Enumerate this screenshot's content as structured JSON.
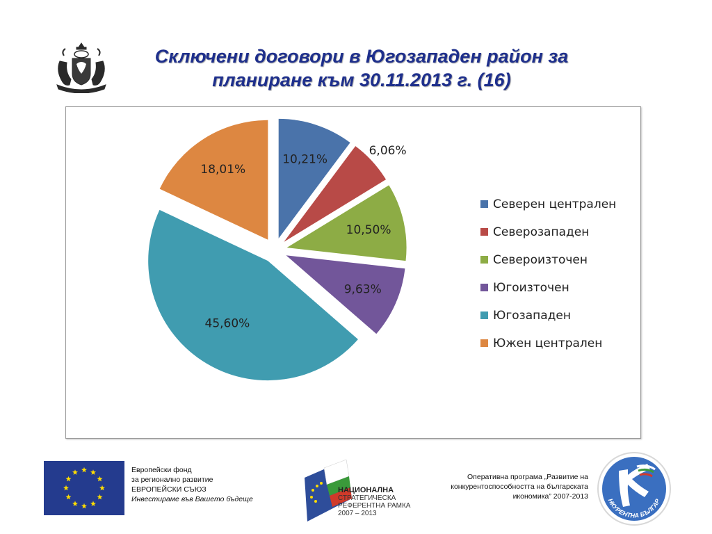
{
  "header": {
    "title_line1": "Сключени договори в Югозападен район за",
    "title_line2": "планиране към 30.11.2013 г. (16)"
  },
  "chart_data": {
    "type": "pie",
    "exploded": true,
    "legend_position": "right",
    "categories": [
      "Северен централен",
      "Северозападен",
      "Североизточен",
      "Югоизточен",
      "Югозападен",
      "Южен централен"
    ],
    "values": [
      10.21,
      6.06,
      10.5,
      9.63,
      45.6,
      18.01
    ],
    "labels": [
      "10,21%",
      "6,06%",
      "10,50%",
      "9,63%",
      "45,60%",
      "18,01%"
    ],
    "colors": [
      "#4a73aa",
      "#b84a47",
      "#8dac45",
      "#72569a",
      "#409cb0",
      "#dd8741"
    ]
  },
  "footer": {
    "eu_line1": "Европейски фонд",
    "eu_line2": "за регионално развитие",
    "eu_line3": "ЕВРОПЕЙСКИ СЪЮЗ",
    "eu_line4": "Инвестираме във Вашето бъдеще",
    "nsrf_line1": "НАЦИОНАЛНА",
    "nsrf_line2": "СТРАТЕГИЧЕСКА",
    "nsrf_line3": "РЕФЕРЕНТНА РАМКА",
    "nsrf_line4": "2007 – 2013",
    "op_line1": "Оперативна програма „Развитие на",
    "op_line2": "конкурентоспособността на българската",
    "op_line3": "икономика” 2007-2013",
    "kb_logo_text": "КОНКУРЕНТНА БЪЛГАРИЯ"
  }
}
